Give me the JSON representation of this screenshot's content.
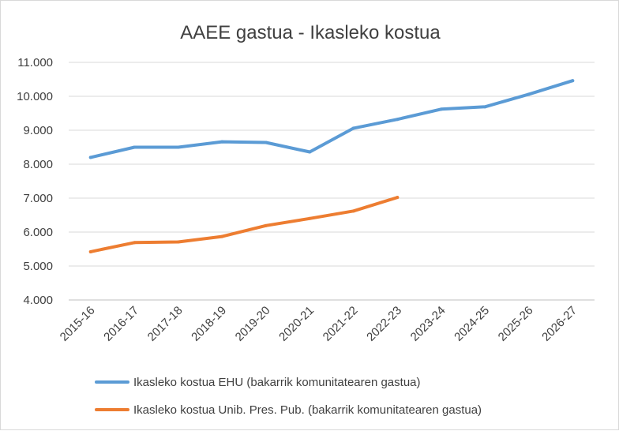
{
  "chart_data": {
    "type": "line",
    "title": "AAEE gastua - Ikasleko kostua",
    "categories": [
      "2015-16",
      "2016-17",
      "2017-18",
      "2018-19",
      "2019-20",
      "2020-21",
      "2021-22",
      "2022-23",
      "2023-24",
      "2024-25",
      "2025-26",
      "2026-27"
    ],
    "ylim": [
      4000,
      11000
    ],
    "yticks": [
      4000,
      5000,
      6000,
      7000,
      8000,
      9000,
      10000,
      11000
    ],
    "ytick_labels": [
      "4.000",
      "5.000",
      "6.000",
      "7.000",
      "8.000",
      "9.000",
      "10.000",
      "11.000"
    ],
    "grid": true,
    "legend_position": "bottom",
    "series": [
      {
        "name": "Ikasleko kostua EHU (bakarrik komunitatearen gastua)",
        "color": "#5b9bd5",
        "values": [
          8200,
          8500,
          8500,
          8660,
          8640,
          8360,
          9060,
          9320,
          9620,
          9690,
          10060,
          10460
        ]
      },
      {
        "name": "Ikasleko kostua Unib. Pres. Pub. (bakarrik komunitatearen gastua)",
        "color": "#ed7d31",
        "values": [
          5420,
          5690,
          5710,
          5870,
          6190,
          6400,
          6620,
          7020,
          null,
          null,
          null,
          null
        ]
      }
    ]
  }
}
